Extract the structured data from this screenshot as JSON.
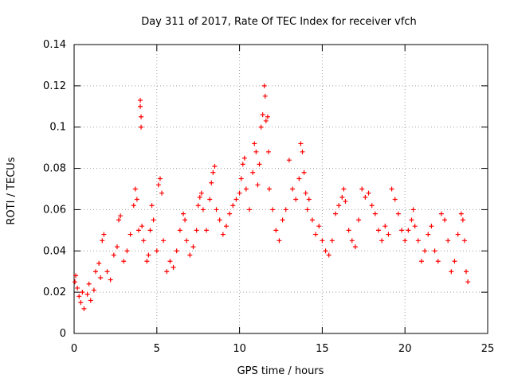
{
  "chart_data": {
    "type": "scatter",
    "title": "Day 311 of 2017, Rate Of TEC Index for receiver vfch",
    "xlabel": "GPS time / hours",
    "ylabel": "ROTI / TECUs",
    "xlim": [
      0,
      25
    ],
    "ylim": [
      0,
      0.14
    ],
    "xticks": [
      0,
      5,
      10,
      15,
      20,
      25
    ],
    "yticks": [
      0,
      0.02,
      0.04,
      0.06,
      0.08,
      0.1,
      0.12,
      0.14
    ],
    "xtick_labels": [
      "0",
      "5",
      "10",
      "15",
      "20",
      "25"
    ],
    "ytick_labels": [
      "0",
      "0.02",
      "0.04",
      "0.06",
      "0.08",
      "0.1",
      "0.12",
      "0.14"
    ],
    "grid": true,
    "marker": "+",
    "marker_color": "#ff0000",
    "series": [
      {
        "name": "ROTI",
        "points": [
          [
            0.05,
            0.025
          ],
          [
            0.1,
            0.028
          ],
          [
            0.2,
            0.022
          ],
          [
            0.3,
            0.018
          ],
          [
            0.4,
            0.015
          ],
          [
            0.5,
            0.02
          ],
          [
            0.6,
            0.012
          ],
          [
            0.8,
            0.019
          ],
          [
            0.9,
            0.024
          ],
          [
            1.0,
            0.016
          ],
          [
            1.2,
            0.021
          ],
          [
            1.3,
            0.03
          ],
          [
            1.5,
            0.034
          ],
          [
            1.6,
            0.027
          ],
          [
            1.7,
            0.045
          ],
          [
            1.8,
            0.048
          ],
          [
            2.0,
            0.03
          ],
          [
            2.2,
            0.026
          ],
          [
            2.4,
            0.038
          ],
          [
            2.6,
            0.042
          ],
          [
            2.7,
            0.055
          ],
          [
            2.8,
            0.057
          ],
          [
            3.0,
            0.035
          ],
          [
            3.2,
            0.04
          ],
          [
            3.4,
            0.048
          ],
          [
            3.6,
            0.062
          ],
          [
            3.7,
            0.07
          ],
          [
            3.8,
            0.065
          ],
          [
            3.9,
            0.05
          ],
          [
            4.0,
            0.113
          ],
          [
            4.0,
            0.11
          ],
          [
            4.05,
            0.105
          ],
          [
            4.05,
            0.1
          ],
          [
            4.1,
            0.052
          ],
          [
            4.2,
            0.045
          ],
          [
            4.4,
            0.035
          ],
          [
            4.5,
            0.038
          ],
          [
            4.6,
            0.05
          ],
          [
            4.7,
            0.062
          ],
          [
            4.8,
            0.055
          ],
          [
            5.0,
            0.04
          ],
          [
            5.1,
            0.072
          ],
          [
            5.2,
            0.075
          ],
          [
            5.3,
            0.068
          ],
          [
            5.4,
            0.045
          ],
          [
            5.6,
            0.03
          ],
          [
            5.8,
            0.035
          ],
          [
            6.0,
            0.032
          ],
          [
            6.2,
            0.04
          ],
          [
            6.4,
            0.05
          ],
          [
            6.6,
            0.058
          ],
          [
            6.7,
            0.055
          ],
          [
            6.8,
            0.045
          ],
          [
            7.0,
            0.038
          ],
          [
            7.2,
            0.042
          ],
          [
            7.4,
            0.05
          ],
          [
            7.5,
            0.062
          ],
          [
            7.6,
            0.066
          ],
          [
            7.7,
            0.068
          ],
          [
            7.8,
            0.06
          ],
          [
            8.0,
            0.05
          ],
          [
            8.2,
            0.065
          ],
          [
            8.3,
            0.073
          ],
          [
            8.4,
            0.078
          ],
          [
            8.5,
            0.081
          ],
          [
            8.6,
            0.06
          ],
          [
            8.8,
            0.055
          ],
          [
            9.0,
            0.048
          ],
          [
            9.2,
            0.052
          ],
          [
            9.4,
            0.058
          ],
          [
            9.6,
            0.062
          ],
          [
            9.8,
            0.065
          ],
          [
            10.0,
            0.068
          ],
          [
            10.1,
            0.075
          ],
          [
            10.2,
            0.082
          ],
          [
            10.3,
            0.085
          ],
          [
            10.4,
            0.07
          ],
          [
            10.6,
            0.06
          ],
          [
            10.8,
            0.078
          ],
          [
            10.9,
            0.092
          ],
          [
            11.0,
            0.088
          ],
          [
            11.1,
            0.072
          ],
          [
            11.2,
            0.082
          ],
          [
            11.3,
            0.1
          ],
          [
            11.4,
            0.106
          ],
          [
            11.5,
            0.12
          ],
          [
            11.55,
            0.115
          ],
          [
            11.6,
            0.103
          ],
          [
            11.7,
            0.105
          ],
          [
            11.75,
            0.088
          ],
          [
            11.8,
            0.07
          ],
          [
            12.0,
            0.06
          ],
          [
            12.2,
            0.05
          ],
          [
            12.4,
            0.045
          ],
          [
            12.6,
            0.055
          ],
          [
            12.8,
            0.06
          ],
          [
            13.0,
            0.084
          ],
          [
            13.2,
            0.07
          ],
          [
            13.4,
            0.065
          ],
          [
            13.6,
            0.075
          ],
          [
            13.7,
            0.092
          ],
          [
            13.8,
            0.088
          ],
          [
            13.9,
            0.078
          ],
          [
            14.0,
            0.068
          ],
          [
            14.1,
            0.06
          ],
          [
            14.2,
            0.065
          ],
          [
            14.4,
            0.055
          ],
          [
            14.6,
            0.048
          ],
          [
            14.8,
            0.052
          ],
          [
            15.0,
            0.045
          ],
          [
            15.2,
            0.04
          ],
          [
            15.4,
            0.038
          ],
          [
            15.6,
            0.045
          ],
          [
            15.8,
            0.058
          ],
          [
            16.0,
            0.062
          ],
          [
            16.2,
            0.066
          ],
          [
            16.3,
            0.07
          ],
          [
            16.4,
            0.064
          ],
          [
            16.6,
            0.05
          ],
          [
            16.8,
            0.045
          ],
          [
            17.0,
            0.042
          ],
          [
            17.2,
            0.055
          ],
          [
            17.4,
            0.07
          ],
          [
            17.6,
            0.066
          ],
          [
            17.8,
            0.068
          ],
          [
            18.0,
            0.062
          ],
          [
            18.2,
            0.058
          ],
          [
            18.4,
            0.05
          ],
          [
            18.6,
            0.045
          ],
          [
            18.8,
            0.052
          ],
          [
            19.0,
            0.048
          ],
          [
            19.2,
            0.07
          ],
          [
            19.4,
            0.065
          ],
          [
            19.6,
            0.058
          ],
          [
            19.8,
            0.05
          ],
          [
            20.0,
            0.045
          ],
          [
            20.2,
            0.05
          ],
          [
            20.4,
            0.055
          ],
          [
            20.5,
            0.06
          ],
          [
            20.6,
            0.052
          ],
          [
            20.8,
            0.045
          ],
          [
            21.0,
            0.035
          ],
          [
            21.2,
            0.04
          ],
          [
            21.4,
            0.048
          ],
          [
            21.6,
            0.052
          ],
          [
            21.8,
            0.04
          ],
          [
            22.0,
            0.035
          ],
          [
            22.2,
            0.058
          ],
          [
            22.4,
            0.055
          ],
          [
            22.6,
            0.045
          ],
          [
            22.8,
            0.03
          ],
          [
            23.0,
            0.035
          ],
          [
            23.2,
            0.048
          ],
          [
            23.4,
            0.058
          ],
          [
            23.5,
            0.055
          ],
          [
            23.6,
            0.045
          ],
          [
            23.7,
            0.03
          ],
          [
            23.8,
            0.025
          ]
        ]
      }
    ]
  }
}
